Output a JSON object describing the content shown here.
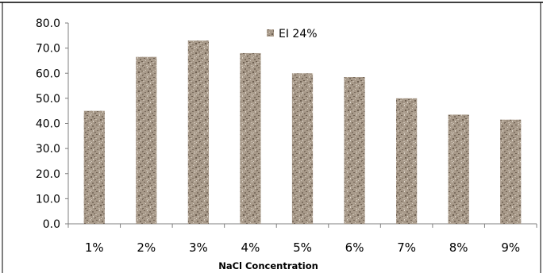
{
  "chart_data": {
    "type": "bar",
    "categories": [
      "1%",
      "2%",
      "3%",
      "4%",
      "5%",
      "6%",
      "7%",
      "8%",
      "9%"
    ],
    "series": [
      {
        "name": "EI 24%",
        "values": [
          45.0,
          66.5,
          73.0,
          68.0,
          60.0,
          58.5,
          50.0,
          43.5,
          41.5
        ]
      }
    ],
    "yticks": [
      "0.0",
      "10.0",
      "20.0",
      "30.0",
      "40.0",
      "50.0",
      "60.0",
      "70.0",
      "80.0"
    ],
    "xlabel": "NaCl Concentration",
    "ylabel": "",
    "ylim": [
      0,
      80
    ],
    "legend_position": "top-center",
    "grid": false,
    "bar_fill": "granite texture",
    "colors": {
      "bar_base": "#a89a8a",
      "bar_dark": "#6e6052",
      "bar_light": "#d9d0c4",
      "axis": "#7f7f7f",
      "border": "#000000"
    }
  }
}
